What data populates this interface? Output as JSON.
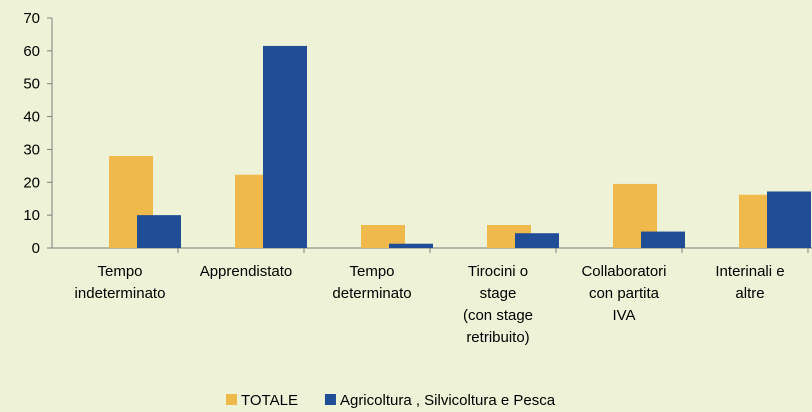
{
  "chart_data": {
    "type": "bar",
    "categories": [
      "Tempo\nindeterminato",
      "Apprendistato",
      "Tempo\ndeterminato",
      "Tirocini o\nstage\n(con stage\nretribuito)",
      "Collaboratori\ncon partita\nIVA",
      "Interinali e\naltre"
    ],
    "series": [
      {
        "name": "TOTALE",
        "color": "#f0b94b",
        "values": [
          28,
          22.3,
          7,
          7,
          19.5,
          16.2
        ]
      },
      {
        "name": "Agricoltura , Silvicoltura e Pesca",
        "color": "#1f4e96",
        "values": [
          10,
          61.5,
          1.3,
          4.5,
          5,
          17.2
        ]
      }
    ],
    "ylim": [
      0,
      70
    ],
    "yticks": [
      0,
      10,
      20,
      30,
      40,
      50,
      60,
      70
    ],
    "grid": false,
    "legend": "bottom"
  }
}
